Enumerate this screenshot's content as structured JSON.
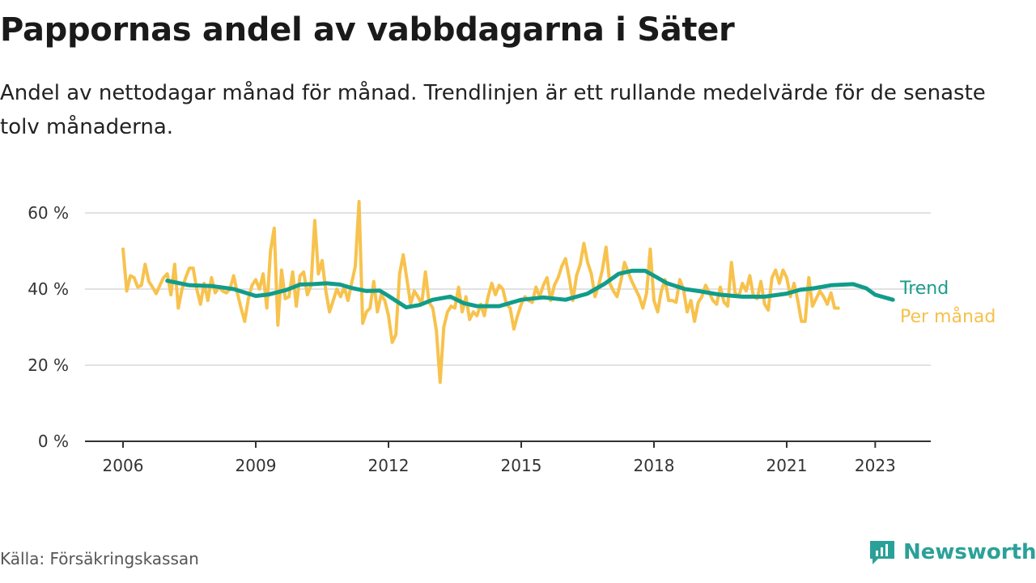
{
  "title": "Pappornas andel av vabbdagarna i Säter",
  "subtitle": "Andel av nettodagar månad för månad. Trendlinjen är ett rullande medelvärde för de senaste tolv månaderna.",
  "source": "Källa: Försäkringskassan",
  "brand": {
    "name": "Newsworthy",
    "icon": "bar-chart-icon"
  },
  "colors": {
    "trend": "#119c8a",
    "monthly": "#f7c24d",
    "grid": "#d9d9d9",
    "brand": "#2aa198"
  },
  "chart_data": {
    "type": "line",
    "title": "Pappornas andel av vabbdagarna i Säter",
    "ylim": [
      0,
      70
    ],
    "xlim": [
      2005.5,
      2024.0
    ],
    "y_ticks": [
      {
        "value": 0,
        "label": "0 %"
      },
      {
        "value": 20,
        "label": "20 %"
      },
      {
        "value": 40,
        "label": "40 %"
      },
      {
        "value": 60,
        "label": "60 %"
      }
    ],
    "x_ticks": [
      {
        "value": 2006,
        "label": "2006"
      },
      {
        "value": 2009,
        "label": "2009"
      },
      {
        "value": 2012,
        "label": "2012"
      },
      {
        "value": 2015,
        "label": "2015"
      },
      {
        "value": 2018,
        "label": "2018"
      },
      {
        "value": 2021,
        "label": "2021"
      },
      {
        "value": 2023,
        "label": "2023"
      }
    ],
    "grid": true,
    "legend": "line-end labels",
    "series": [
      {
        "name": "Per månad",
        "color": "#f7c24d",
        "start": 2006.0,
        "step_months": 1,
        "values": [
          50.5,
          39.5,
          43.5,
          43,
          40.5,
          41,
          46.5,
          42,
          40.5,
          38.8,
          41,
          43,
          44,
          38.5,
          46.5,
          35,
          40,
          43,
          45.5,
          45.5,
          40,
          36,
          41.5,
          37,
          43,
          39,
          40.5,
          39.5,
          39,
          40,
          43.5,
          39,
          35,
          31.5,
          37.5,
          41,
          42.5,
          40,
          44,
          35,
          50,
          56,
          30.5,
          45,
          37.5,
          38,
          44.5,
          35.5,
          43.5,
          44.5,
          38.5,
          41,
          58,
          44,
          47.5,
          39.5,
          34,
          37,
          40,
          38,
          40.5,
          37,
          41.5,
          46,
          63,
          31,
          34,
          35,
          42,
          34,
          38.5,
          37,
          33,
          26,
          28,
          44,
          49,
          42.5,
          36,
          39.5,
          38,
          36,
          44.5,
          36.5,
          35,
          29,
          15.5,
          30,
          34,
          35.5,
          35,
          40.5,
          34,
          38,
          32,
          34,
          33,
          36,
          33,
          38,
          41.5,
          38.5,
          41,
          40,
          36,
          35,
          29.5,
          33,
          36,
          38,
          37,
          36.5,
          40.5,
          38,
          41,
          43,
          37,
          41,
          43,
          46,
          48,
          43,
          37,
          43.5,
          46.5,
          52,
          47,
          44,
          38,
          41,
          45,
          51,
          41.5,
          39.5,
          38,
          42,
          47,
          44.5,
          42,
          40,
          38,
          35,
          39,
          50.5,
          37,
          34,
          39.5,
          42.5,
          37,
          37,
          36.5,
          42.5,
          40,
          34,
          37,
          31.5,
          36.5,
          38,
          41,
          39,
          37,
          36,
          40.5,
          36.5,
          35.5,
          47,
          39,
          38,
          41.5,
          39.5,
          43.5,
          38,
          37.5,
          42,
          36,
          34.5,
          43,
          45,
          41.5,
          45,
          43,
          38,
          41.5,
          37,
          31.5,
          31.5,
          43,
          35.5,
          37.5,
          39.5,
          38,
          36,
          39,
          35,
          35
        ]
      },
      {
        "name": "Trend",
        "color": "#119c8a",
        "points": [
          [
            2007.0,
            42.2
          ],
          [
            2007.5,
            41.0
          ],
          [
            2008.0,
            40.8
          ],
          [
            2008.5,
            40.0
          ],
          [
            2009.0,
            38.2
          ],
          [
            2009.3,
            38.6
          ],
          [
            2009.7,
            39.8
          ],
          [
            2010.0,
            41.2
          ],
          [
            2010.3,
            41.3
          ],
          [
            2010.6,
            41.5
          ],
          [
            2010.9,
            41.2
          ],
          [
            2011.2,
            40.2
          ],
          [
            2011.5,
            39.5
          ],
          [
            2011.8,
            39.6
          ],
          [
            2012.0,
            38.2
          ],
          [
            2012.4,
            35.2
          ],
          [
            2012.7,
            35.8
          ],
          [
            2013.0,
            37.2
          ],
          [
            2013.4,
            38.0
          ],
          [
            2013.7,
            36.3
          ],
          [
            2014.0,
            35.5
          ],
          [
            2014.5,
            35.5
          ],
          [
            2015.0,
            37.2
          ],
          [
            2015.5,
            37.8
          ],
          [
            2016.0,
            37.2
          ],
          [
            2016.5,
            38.8
          ],
          [
            2016.9,
            41.5
          ],
          [
            2017.2,
            44.0
          ],
          [
            2017.5,
            44.8
          ],
          [
            2017.8,
            44.8
          ],
          [
            2018.0,
            43.5
          ],
          [
            2018.3,
            41.5
          ],
          [
            2018.7,
            40.0
          ],
          [
            2019.0,
            39.5
          ],
          [
            2019.5,
            38.5
          ],
          [
            2020.0,
            38.0
          ],
          [
            2020.5,
            38.0
          ],
          [
            2021.0,
            38.8
          ],
          [
            2021.3,
            39.8
          ],
          [
            2021.6,
            40.2
          ],
          [
            2022.0,
            41.0
          ],
          [
            2022.5,
            41.3
          ],
          [
            2022.8,
            40.2
          ],
          [
            2023.0,
            38.5
          ],
          [
            2023.4,
            37.2
          ]
        ]
      }
    ],
    "labels": {
      "trend": "Trend",
      "monthly": "Per månad"
    }
  }
}
